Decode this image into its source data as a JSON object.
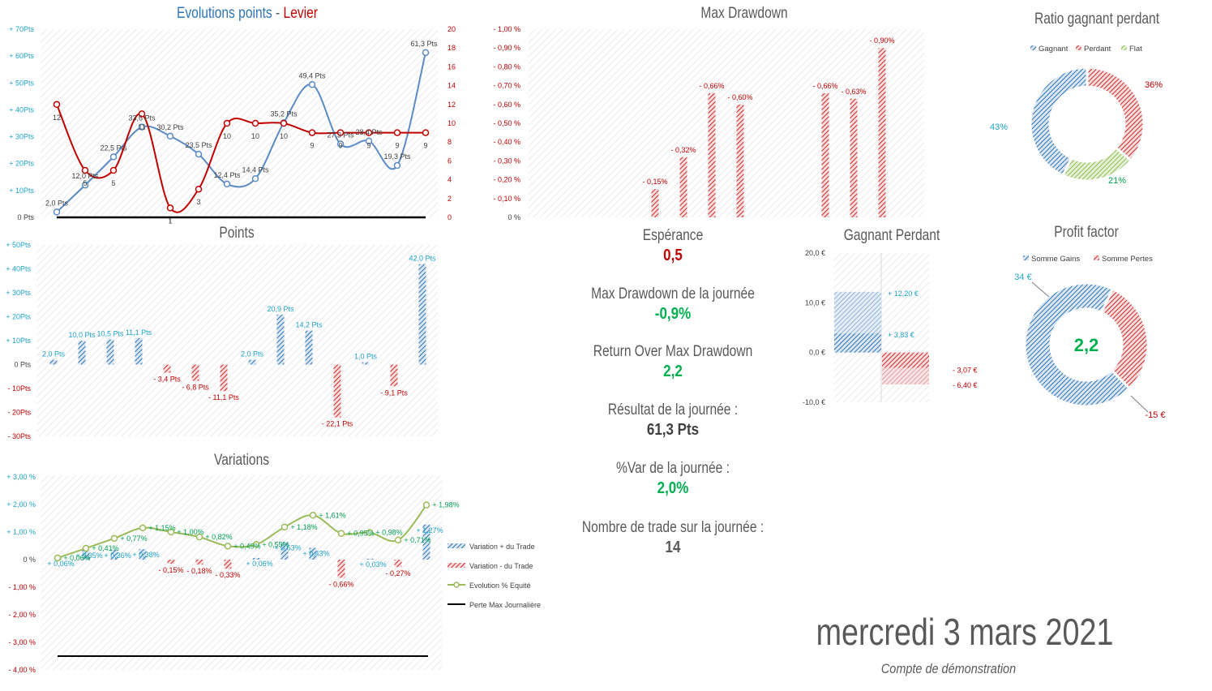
{
  "charts": {
    "evolution": {
      "title_part1": "Evolutions points",
      "title_sep": " - ",
      "title_part2": "Levier",
      "y_left_ticks": [
        "+ 70Pts",
        "+ 60Pts",
        "+ 50Pts",
        "+ 40Pts",
        "+ 30Pts",
        "+ 20Pts",
        "+ 10Pts",
        "0 Pts"
      ],
      "y_right_ticks": [
        "20",
        "18",
        "16",
        "14",
        "12",
        "10",
        "8",
        "6",
        "4",
        "2",
        "0"
      ],
      "points_labels": [
        "2,0 Pts",
        "12,0 Pts",
        "22,5 Pts",
        "33,6 Pts",
        "30,2 Pts",
        "23,5 Pts",
        "12,4 Pts",
        "14,4 Pts",
        "35,2 Pts",
        "49,4 Pts",
        "27,3 Pts",
        "28,4 Pts",
        "19,3 Pts",
        "61,3 Pts"
      ],
      "levier_labels": [
        "12",
        "5",
        "5",
        "11",
        "1",
        "3",
        "10",
        "10",
        "10",
        "9",
        "9",
        "9",
        "9",
        "9"
      ]
    },
    "points": {
      "title": "Points",
      "y_ticks": [
        "+ 50Pts",
        "+ 40Pts",
        "+ 30Pts",
        "+ 20Pts",
        "+ 10Pts",
        "0 Pts",
        "- 10Pts",
        "- 20Pts",
        "- 30Pts"
      ],
      "labels": [
        "2,0 Pts",
        "10,0 Pts",
        "10,5 Pts",
        "11,1 Pts",
        "- 3,4 Pts",
        "- 6,8 Pts",
        "- 11,1 Pts",
        "2,0 Pts",
        "20,9 Pts",
        "14,2 Pts",
        "- 22,1 Pts",
        "1,0 Pts",
        "- 9,1 Pts",
        "42,0 Pts"
      ]
    },
    "variations": {
      "title": "Variations",
      "y_ticks": [
        "+ 3,00 %",
        "+ 2,00 %",
        "+ 1,00 %",
        "0 %",
        "- 1,00 %",
        "- 2,00 %",
        "- 3,00 %",
        "- 4,00 %"
      ],
      "bar_labels": [
        "+ 0,06%",
        "+ 0,35%",
        "+ 0,36%",
        "+ 0,38%",
        "- 0,15%",
        "- 0,18%",
        "- 0,33%",
        "+ 0,06%",
        "+ 0,63%",
        "+ 0,43%",
        "- 0,66%",
        "+ 0,03%",
        "- 0,27%",
        "+ 1,27%"
      ],
      "equity_labels": [
        "+ 0,06%",
        "+ 0,41%",
        "+ 0,77%",
        "+ 1,15%",
        "+ 1,00%",
        "+ 0,82%",
        "+ 0,49%",
        "+ 0,55%",
        "+ 1,18%",
        "+ 1,61%",
        "+ 0,95%",
        "+ 0,98%",
        "+ 0,71%",
        "+ 1,98%"
      ],
      "legend": [
        "Variation + du Trade",
        "Variation - du Trade",
        "Evolution % Equité",
        "Perte Max Journalière"
      ]
    },
    "drawdown": {
      "title": "Max Drawdown",
      "y_ticks": [
        "- 1,00 %",
        "- 0,90 %",
        "- 0,80 %",
        "- 0,70 %",
        "- 0,60 %",
        "- 0,50 %",
        "- 0,40 %",
        "- 0,30 %",
        "- 0,20 %",
        "- 0,10 %",
        "0 %"
      ],
      "labels": [
        "- 0,15%",
        "- 0,32%",
        "- 0,66%",
        "- 0,60%",
        "- 0,66%",
        "- 0,63%",
        "- 0,90%"
      ]
    },
    "gagnant_perdant": {
      "title": "Gagnant Perdant",
      "y_ticks": [
        "20,0 €",
        "10,0 €",
        "0,0 €",
        "-10,0 €"
      ],
      "labels": [
        "+ 12,20 €",
        "+ 3,83 €",
        "- 3,07 €",
        "- 6,40 €"
      ]
    },
    "ratio": {
      "title": "Ratio gagnant perdant",
      "legend": [
        "Gagnant",
        "Perdant",
        "Flat"
      ],
      "labels": [
        "43%",
        "36%",
        "21%"
      ]
    },
    "profit_factor": {
      "title": "Profit factor",
      "legend": [
        "Somme Gains",
        "Somme Pertes"
      ],
      "labels": [
        "34 €",
        "-15 €"
      ],
      "center": "2,2"
    }
  },
  "kpis": {
    "esperance_label": "Espérance",
    "esperance_value": "0,5",
    "mdd_label": "Max Drawdown de la journée",
    "mdd_value": "-0,9%",
    "romd_label": "Return Over Max Drawdown",
    "romd_value": "2,2",
    "result_label": "Résultat de la journée :",
    "result_value": "61,3 Pts",
    "var_label": "%Var de la journée :",
    "var_value": "2,0%",
    "trades_label": "Nombre de trade sur la journée :",
    "trades_value": "14"
  },
  "footer": {
    "date": "mercredi 3 mars 2021",
    "account": "Compte de démonstration"
  },
  "colors": {
    "blue": "#4a7ebb",
    "red": "#c0504d",
    "darkred": "#c00000",
    "green": "#00b050",
    "lime": "#9bbb59",
    "cyan": "#1fa3c9",
    "grey": "#595959"
  },
  "chart_data": [
    {
      "type": "line",
      "title": "Evolutions points - Levier",
      "x": [
        1,
        2,
        3,
        4,
        5,
        6,
        7,
        8,
        9,
        10,
        11,
        12,
        13,
        14
      ],
      "series": [
        {
          "values": [
            2.0,
            12.0,
            22.5,
            33.6,
            30.2,
            23.5,
            12.4,
            14.4,
            35.2,
            49.4,
            27.3,
            28.4,
            19.3,
            61.3
          ],
          "axis": "left"
        },
        {
          "values": [
            12,
            5,
            5,
            11,
            1,
            3,
            10,
            10,
            10,
            9,
            9,
            9,
            9,
            9
          ],
          "axis": "right"
        }
      ],
      "ylim_left": [
        0,
        70
      ],
      "ylim_right": [
        0,
        20
      ]
    },
    {
      "type": "bar",
      "title": "Points",
      "x": [
        1,
        2,
        3,
        4,
        5,
        6,
        7,
        8,
        9,
        10,
        11,
        12,
        13,
        14
      ],
      "values": [
        2.0,
        10.0,
        10.5,
        11.1,
        -3.4,
        -6.8,
        -11.1,
        2.0,
        20.9,
        14.2,
        -22.1,
        1.0,
        -9.1,
        42.0
      ],
      "ylim": [
        -30,
        50
      ]
    },
    {
      "type": "bar",
      "title": "Variations",
      "x": [
        1,
        2,
        3,
        4,
        5,
        6,
        7,
        8,
        9,
        10,
        11,
        12,
        13,
        14
      ],
      "series": [
        {
          "name": "Variation + du Trade",
          "values": [
            0.06,
            0.35,
            0.36,
            0.38,
            null,
            null,
            null,
            0.06,
            0.63,
            0.43,
            null,
            0.03,
            null,
            1.27
          ]
        },
        {
          "name": "Variation - du Trade",
          "values": [
            null,
            null,
            null,
            null,
            -0.15,
            -0.18,
            -0.33,
            null,
            null,
            null,
            -0.66,
            null,
            -0.27,
            null
          ]
        },
        {
          "name": "Evolution % Equité",
          "values": [
            0.06,
            0.41,
            0.77,
            1.15,
            1.0,
            0.82,
            0.49,
            0.55,
            1.18,
            1.61,
            0.95,
            0.98,
            0.71,
            1.98
          ]
        },
        {
          "name": "Perte Max Journalière",
          "values": [
            -3.5,
            -3.5,
            -3.5,
            -3.5,
            -3.5,
            -3.5,
            -3.5,
            -3.5,
            -3.5,
            -3.5,
            -3.5,
            -3.5,
            -3.5,
            -3.5
          ]
        }
      ],
      "ylim": [
        -4,
        3
      ]
    },
    {
      "type": "bar",
      "title": "Max Drawdown",
      "x": [
        1,
        2,
        3,
        4,
        5,
        6,
        7,
        8,
        9,
        10,
        11,
        12,
        13,
        14
      ],
      "values": [
        0,
        0,
        0,
        0,
        -0.15,
        -0.32,
        -0.66,
        -0.6,
        0,
        0,
        -0.66,
        -0.63,
        -0.9,
        0
      ],
      "ylim": [
        -1.0,
        0
      ]
    },
    {
      "type": "bar",
      "title": "Gagnant Perdant",
      "categories": [
        "Gagnant",
        "Perdant"
      ],
      "series": [
        {
          "values": [
            12.2,
            -6.4
          ]
        },
        {
          "values": [
            3.83,
            -3.07
          ]
        }
      ],
      "ylim": [
        -10,
        20
      ]
    },
    {
      "type": "pie",
      "title": "Ratio gagnant perdant",
      "categories": [
        "Gagnant",
        "Perdant",
        "Flat"
      ],
      "values": [
        43,
        36,
        21
      ]
    },
    {
      "type": "pie",
      "title": "Profit factor",
      "categories": [
        "Somme Gains",
        "Somme Pertes"
      ],
      "values": [
        34,
        15
      ]
    }
  ]
}
